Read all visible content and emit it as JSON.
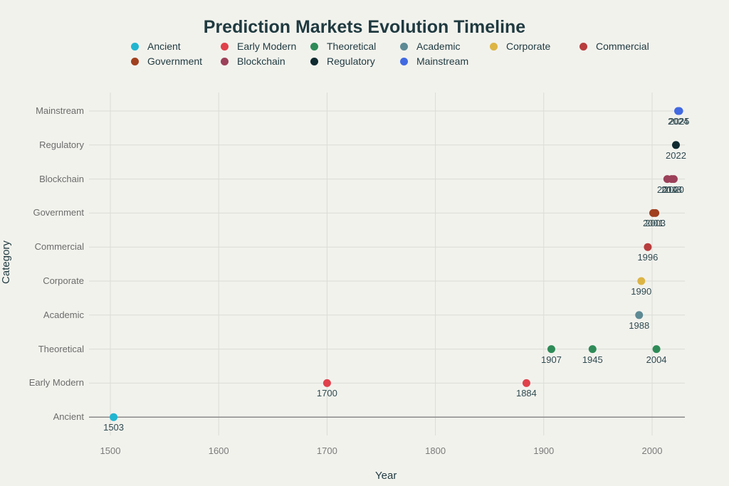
{
  "chart_data": {
    "type": "scatter",
    "title": "Prediction Markets Evolution Timeline",
    "xlabel": "Year",
    "ylabel": "Category",
    "xlim": [
      1480,
      2030
    ],
    "x_ticks": [
      1500,
      1600,
      1700,
      1800,
      1900,
      2000
    ],
    "grid": true,
    "legend_position": "top",
    "categories": [
      "Ancient",
      "Early Modern",
      "Theoretical",
      "Academic",
      "Corporate",
      "Commercial",
      "Government",
      "Blockchain",
      "Regulatory",
      "Mainstream"
    ],
    "series": [
      {
        "name": "Ancient",
        "color": "#22b5d0",
        "x": [
          1503
        ],
        "y": "Ancient"
      },
      {
        "name": "Early Modern",
        "color": "#e0414b",
        "x": [
          1700,
          1884
        ],
        "y": "Early Modern"
      },
      {
        "name": "Theoretical",
        "color": "#2e8b57",
        "x": [
          1907,
          1945,
          2004
        ],
        "y": "Theoretical"
      },
      {
        "name": "Academic",
        "color": "#5d8a94",
        "x": [
          1988
        ],
        "y": "Academic"
      },
      {
        "name": "Corporate",
        "color": "#dcb545",
        "x": [
          1990
        ],
        "y": "Corporate"
      },
      {
        "name": "Commercial",
        "color": "#b83d3d",
        "x": [
          1996
        ],
        "y": "Commercial"
      },
      {
        "name": "Government",
        "color": "#a0401f",
        "x": [
          2001,
          2003
        ],
        "y": "Government"
      },
      {
        "name": "Blockchain",
        "color": "#9b4058",
        "x": [
          2014,
          2018,
          2020
        ],
        "y": "Blockchain"
      },
      {
        "name": "Regulatory",
        "color": "#0f2a30",
        "x": [
          2022
        ],
        "y": "Regulatory"
      },
      {
        "name": "Mainstream",
        "color": "#4169e1",
        "x": [
          2024,
          2025
        ],
        "y": "Mainstream"
      }
    ]
  },
  "legend": {
    "items": [
      {
        "label": "Ancient",
        "color": "#22b5d0"
      },
      {
        "label": "Early Modern",
        "color": "#e0414b"
      },
      {
        "label": "Theoretical",
        "color": "#2e8b57"
      },
      {
        "label": "Academic",
        "color": "#5d8a94"
      },
      {
        "label": "Corporate",
        "color": "#dcb545"
      },
      {
        "label": "Commercial",
        "color": "#b83d3d"
      },
      {
        "label": "Government",
        "color": "#a0401f"
      },
      {
        "label": "Blockchain",
        "color": "#9b4058"
      },
      {
        "label": "Regulatory",
        "color": "#0f2a30"
      },
      {
        "label": "Mainstream",
        "color": "#4169e1"
      }
    ]
  }
}
